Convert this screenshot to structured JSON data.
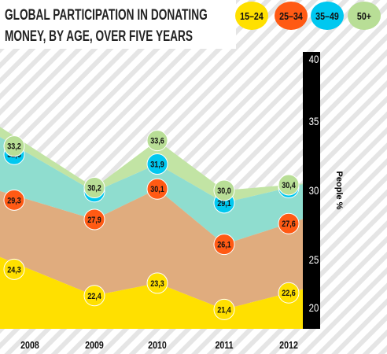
{
  "chart_data": {
    "type": "area",
    "title_lines": [
      "GLOBAL PARTICIPATION IN DONATING",
      "MONEY, BY AGE, OVER FIVE YEARS"
    ],
    "xlabel": "",
    "ylabel": "People %",
    "categories": [
      "2008",
      "2009",
      "2010",
      "2011",
      "2012"
    ],
    "ylim": [
      20,
      40
    ],
    "yticks": [
      "20",
      "25",
      "30",
      "35",
      "40"
    ],
    "grid": false,
    "legend_position": "top-right",
    "series": [
      {
        "name": "15–24",
        "color": "#FFE000",
        "label_color": "#FFE000",
        "area_color": "#FFE000",
        "values": [
          24.3,
          22.4,
          23.3,
          21.4,
          22.6
        ],
        "labels": [
          "24,3",
          "22,4",
          "23,3",
          "21,4",
          "22,6"
        ]
      },
      {
        "name": "25–34",
        "color": "#FF5A14",
        "label_color": "#FF5A14",
        "area_color": "#E0AC7E",
        "values": [
          29.3,
          27.9,
          30.1,
          26.1,
          27.6
        ],
        "labels": [
          "29,3",
          "27,9",
          "30,1",
          "26,1",
          "27,6"
        ]
      },
      {
        "name": "35–49",
        "color": "#00C8F0",
        "label_color": "#00C8F0",
        "area_color": "#8FDDCF",
        "values": [
          32.6,
          29.9,
          31.9,
          29.1,
          30.2
        ],
        "labels": [
          "32,6",
          "29,9",
          "31,9",
          "29,1",
          "30,2"
        ]
      },
      {
        "name": "50+",
        "color": "#B8DE96",
        "label_color": "#B8DE96",
        "area_color": "#C2E4A4",
        "values": [
          33.2,
          30.2,
          33.6,
          30.0,
          30.4
        ],
        "labels": [
          "33,2",
          "30,2",
          "33,6",
          "30,0",
          "30,4"
        ]
      }
    ],
    "axis_bar_color": "#000000",
    "background_color": "#ffffff"
  }
}
